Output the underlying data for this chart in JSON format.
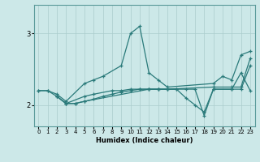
{
  "xlabel": "Humidex (Indice chaleur)",
  "xlim": [
    -0.5,
    23.5
  ],
  "ylim": [
    1.7,
    3.4
  ],
  "yticks": [
    2,
    3
  ],
  "xticks": [
    0,
    1,
    2,
    3,
    4,
    5,
    6,
    7,
    8,
    9,
    10,
    11,
    12,
    13,
    14,
    15,
    16,
    17,
    18,
    19,
    20,
    21,
    22,
    23
  ],
  "bg_color": "#cce8e8",
  "line_color": "#2a7a7a",
  "grid_color": "#aacccc",
  "lines": [
    {
      "x": [
        0,
        1,
        2,
        3,
        5,
        6,
        7,
        9,
        10,
        11,
        12,
        13,
        14,
        19,
        20,
        21,
        22,
        23
      ],
      "y": [
        2.2,
        2.2,
        2.15,
        2.05,
        2.3,
        2.35,
        2.4,
        2.55,
        3.0,
        3.1,
        2.45,
        2.35,
        2.25,
        2.3,
        2.4,
        2.35,
        2.7,
        2.75
      ]
    },
    {
      "x": [
        0,
        1,
        2,
        3,
        5,
        6,
        8,
        9,
        10,
        11,
        12,
        13,
        14,
        19,
        21,
        22,
        23
      ],
      "y": [
        2.2,
        2.2,
        2.12,
        2.02,
        2.12,
        2.15,
        2.2,
        2.2,
        2.22,
        2.22,
        2.22,
        2.22,
        2.22,
        2.25,
        2.25,
        2.25,
        2.65
      ]
    },
    {
      "x": [
        2,
        3,
        4,
        5,
        12,
        13,
        14,
        15,
        16,
        17,
        18,
        19,
        21,
        22,
        23
      ],
      "y": [
        2.12,
        2.02,
        2.02,
        2.05,
        2.22,
        2.22,
        2.22,
        2.22,
        2.1,
        2.0,
        1.9,
        2.22,
        2.22,
        2.45,
        2.2
      ]
    },
    {
      "x": [
        2,
        3,
        4,
        5,
        6,
        7,
        8,
        9,
        10,
        11,
        12,
        13,
        14,
        15,
        16,
        17,
        18,
        19,
        21,
        22,
        23
      ],
      "y": [
        2.12,
        2.02,
        2.02,
        2.05,
        2.08,
        2.12,
        2.15,
        2.18,
        2.2,
        2.22,
        2.22,
        2.22,
        2.22,
        2.22,
        2.22,
        2.22,
        1.85,
        2.22,
        2.22,
        2.22,
        2.55
      ]
    }
  ],
  "figsize": [
    3.2,
    2.0
  ],
  "dpi": 100
}
